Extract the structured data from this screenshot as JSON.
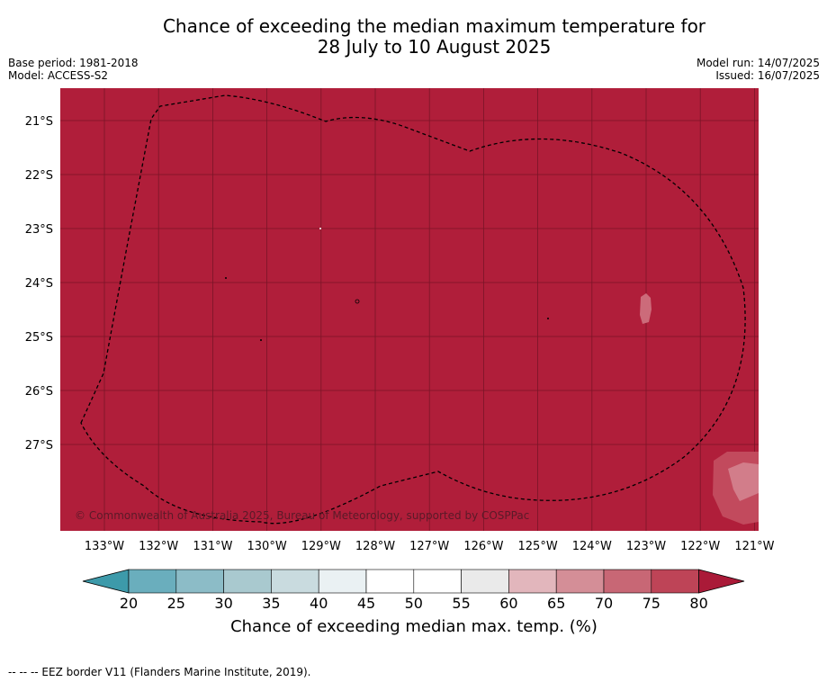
{
  "title_line1": "Chance of exceeding the median maximum temperature for",
  "title_line2": "28 July to 10 August 2025",
  "meta_left": {
    "base_period": "Base period: 1981-2018",
    "model": "Model: ACCESS-S2"
  },
  "meta_right": {
    "model_run": "Model run: 14/07/2025",
    "issued": "Issued: 16/07/2025"
  },
  "map": {
    "background_color": "#b01e3a",
    "copyright": "© Commonwealth of Australia 2025, Bureau of Meteorology, supported by COSPPac",
    "lon_ticks": [
      "133°W",
      "132°W",
      "131°W",
      "130°W",
      "129°W",
      "128°W",
      "127°W",
      "126°W",
      "125°W",
      "124°W",
      "123°W",
      "122°W",
      "121°W"
    ],
    "lat_ticks": [
      "21°S",
      "22°S",
      "23°S",
      "24°S",
      "25°S",
      "26°S",
      "27°S"
    ]
  },
  "colorbar": {
    "title": "Chance of exceeding median max. temp. (%)",
    "labels": [
      "20",
      "25",
      "30",
      "35",
      "40",
      "45",
      "50",
      "55",
      "60",
      "65",
      "70",
      "75",
      "80"
    ],
    "colors": [
      "#6aaebd",
      "#8cbcc7",
      "#a9c9cf",
      "#c9dbdf",
      "#eaf1f3",
      "#ffffff",
      "#ffffff",
      "#eaeaea",
      "#e2b6bc",
      "#d48e97",
      "#c86775",
      "#be4457"
    ],
    "low_extend_color": "#3d9aaa",
    "high_extend_color": "#aa1a38"
  },
  "footnote": "--  --  -- EEZ border V11 (Flanders Marine Institute, 2019)."
}
